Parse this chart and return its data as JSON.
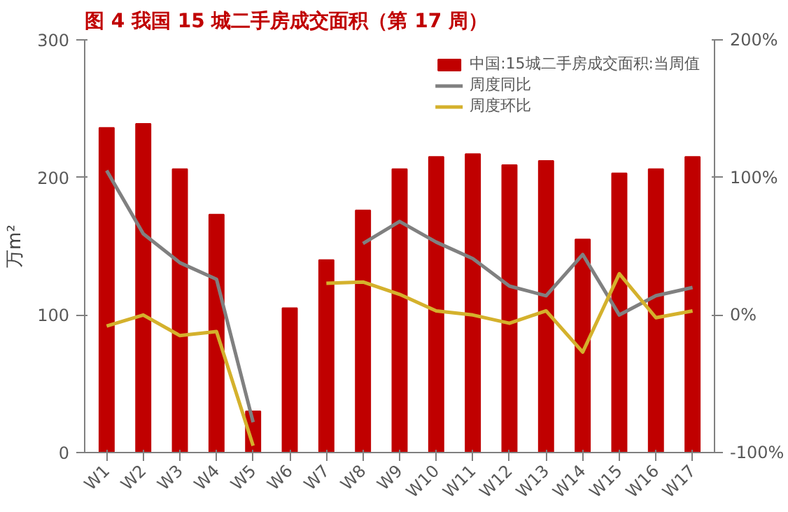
{
  "chart_data": {
    "type": "bar",
    "title": "图 4 我国 15 城二手房成交面积（第 17 周）",
    "ylabel": "万m²",
    "categories": [
      "W1",
      "W2",
      "W3",
      "W4",
      "W5",
      "W6",
      "W7",
      "W8",
      "W9",
      "W10",
      "W11",
      "W12",
      "W13",
      "W14",
      "W15",
      "W16",
      "W17"
    ],
    "series": [
      {
        "name": "中国:15城二手房成交面积:当周值",
        "color": "#c00000",
        "values": [
          236,
          239,
          206,
          173,
          30,
          105,
          140,
          176,
          206,
          215,
          217,
          209,
          212,
          155,
          203,
          206,
          215
        ]
      },
      {
        "name": "周度同比",
        "color": "#808080",
        "type": "line",
        "axis": "y2",
        "values": [
          105,
          59,
          38,
          26,
          -78,
          null,
          null,
          52,
          68,
          53,
          41,
          21,
          14,
          44,
          0,
          14,
          20
        ]
      },
      {
        "name": "周度环比",
        "color": "#d4b12c",
        "type": "line",
        "axis": "y2",
        "values": [
          -8,
          0,
          -15,
          -12,
          -95,
          null,
          23,
          24,
          15,
          3,
          0,
          -6,
          3,
          -27,
          30,
          -2,
          3
        ]
      }
    ],
    "ylim": [
      0,
      300
    ],
    "yticks": [
      0,
      100,
      200,
      300
    ],
    "y2lim": [
      -100,
      200
    ],
    "y2ticks": [
      {
        "value": -100,
        "label": "-100%"
      },
      {
        "value": 0,
        "label": "0%"
      },
      {
        "value": 100,
        "label": "100%"
      },
      {
        "value": 200,
        "label": "200%"
      }
    ],
    "grid": false,
    "legend": "top right"
  }
}
